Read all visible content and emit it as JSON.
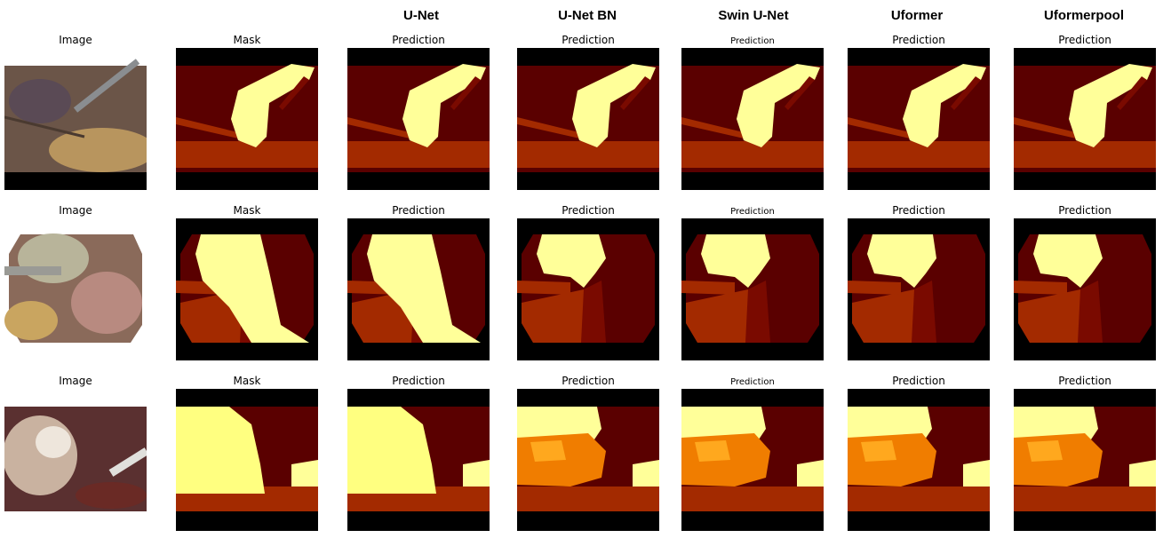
{
  "column_headers": [
    "U-Net",
    "U-Net BN",
    "Swin U-Net",
    "Uformer",
    "Uformerpool"
  ],
  "panel_titles": {
    "image": "Image",
    "mask": "Mask",
    "prediction": "Prediction"
  },
  "colors": {
    "background_black": "#000000",
    "dark_red": "#5a0000",
    "deep_red": "#7a0a00",
    "brown": "#a32a00",
    "orange": "#f07d00",
    "bright_orange": "#ffa81e",
    "yellow": "#ffff99",
    "pale_yellow": "#ffff80"
  }
}
